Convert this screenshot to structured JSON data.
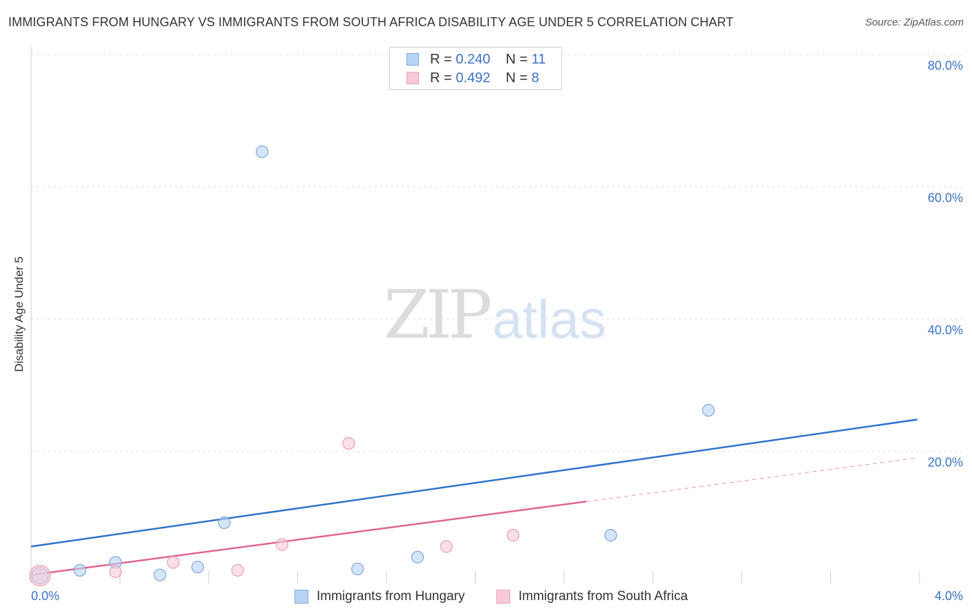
{
  "header": {
    "title": "IMMIGRANTS FROM HUNGARY VS IMMIGRANTS FROM SOUTH AFRICA DISABILITY AGE UNDER 5 CORRELATION CHART",
    "source": "Source: ZipAtlas.com"
  },
  "watermark": {
    "zip": "ZIP",
    "atlas": "atlas"
  },
  "legend": {
    "rows": [
      {
        "r_label": "R =",
        "r_value": "0.240",
        "n_label": "N =",
        "n_value": "11"
      },
      {
        "r_label": "R =",
        "r_value": "0.492",
        "n_label": "N =",
        "n_value": "8"
      }
    ]
  },
  "colors": {
    "hungary_fill": "#b9d3f4",
    "hungary_stroke": "#7aa6dd",
    "hungary_line": "#2f72d0",
    "southafrica_fill": "#f9c9d7",
    "southafrica_stroke": "#e8a0b5",
    "southafrica_line": "#e0648f",
    "grid": "#e2e2e2",
    "axis_label": "#3a72c8"
  },
  "chart_data": {
    "type": "scatter",
    "title": "IMMIGRANTS FROM HUNGARY VS IMMIGRANTS FROM SOUTH AFRICA DISABILITY AGE UNDER 5 CORRELATION CHART",
    "xlabel": "",
    "ylabel": "Disability Age Under 5",
    "xlim": [
      0,
      4
    ],
    "ylim": [
      0,
      80
    ],
    "x_tick_labels": [
      "0.0%",
      "4.0%"
    ],
    "y_ticks": [
      20,
      40,
      60,
      80
    ],
    "y_tick_labels": [
      "20.0%",
      "40.0%",
      "60.0%",
      "80.0%"
    ],
    "grid": true,
    "legend_position": "top-center",
    "series": [
      {
        "name": "Immigrants from Hungary",
        "r": 0.24,
        "n": 11,
        "points": [
          {
            "x": 0.04,
            "y": 1.2
          },
          {
            "x": 0.22,
            "y": 2.0
          },
          {
            "x": 0.38,
            "y": 3.2
          },
          {
            "x": 0.58,
            "y": 1.3
          },
          {
            "x": 0.75,
            "y": 2.5
          },
          {
            "x": 0.87,
            "y": 9.2
          },
          {
            "x": 1.04,
            "y": 65.3
          },
          {
            "x": 1.47,
            "y": 2.2
          },
          {
            "x": 1.74,
            "y": 4.0
          },
          {
            "x": 2.61,
            "y": 7.3
          },
          {
            "x": 3.05,
            "y": 26.2
          }
        ],
        "trend": {
          "x": [
            0,
            3.99
          ],
          "y": [
            5.6,
            24.8
          ],
          "style": "solid"
        }
      },
      {
        "name": "Immigrants from South Africa",
        "r": 0.492,
        "n": 8,
        "points": [
          {
            "x": 0.04,
            "y": 1.2
          },
          {
            "x": 0.38,
            "y": 1.8
          },
          {
            "x": 0.64,
            "y": 3.2
          },
          {
            "x": 0.93,
            "y": 2.0
          },
          {
            "x": 1.13,
            "y": 5.9
          },
          {
            "x": 1.43,
            "y": 21.2
          },
          {
            "x": 1.87,
            "y": 5.6
          },
          {
            "x": 2.17,
            "y": 7.3
          }
        ],
        "trend": {
          "x": [
            0,
            2.5
          ],
          "y": [
            1.3,
            12.4
          ],
          "style": "solid"
        },
        "trend_extension": {
          "x": [
            2.5,
            3.99
          ],
          "y": [
            12.4,
            19.0
          ],
          "style": "dashed"
        }
      }
    ]
  }
}
